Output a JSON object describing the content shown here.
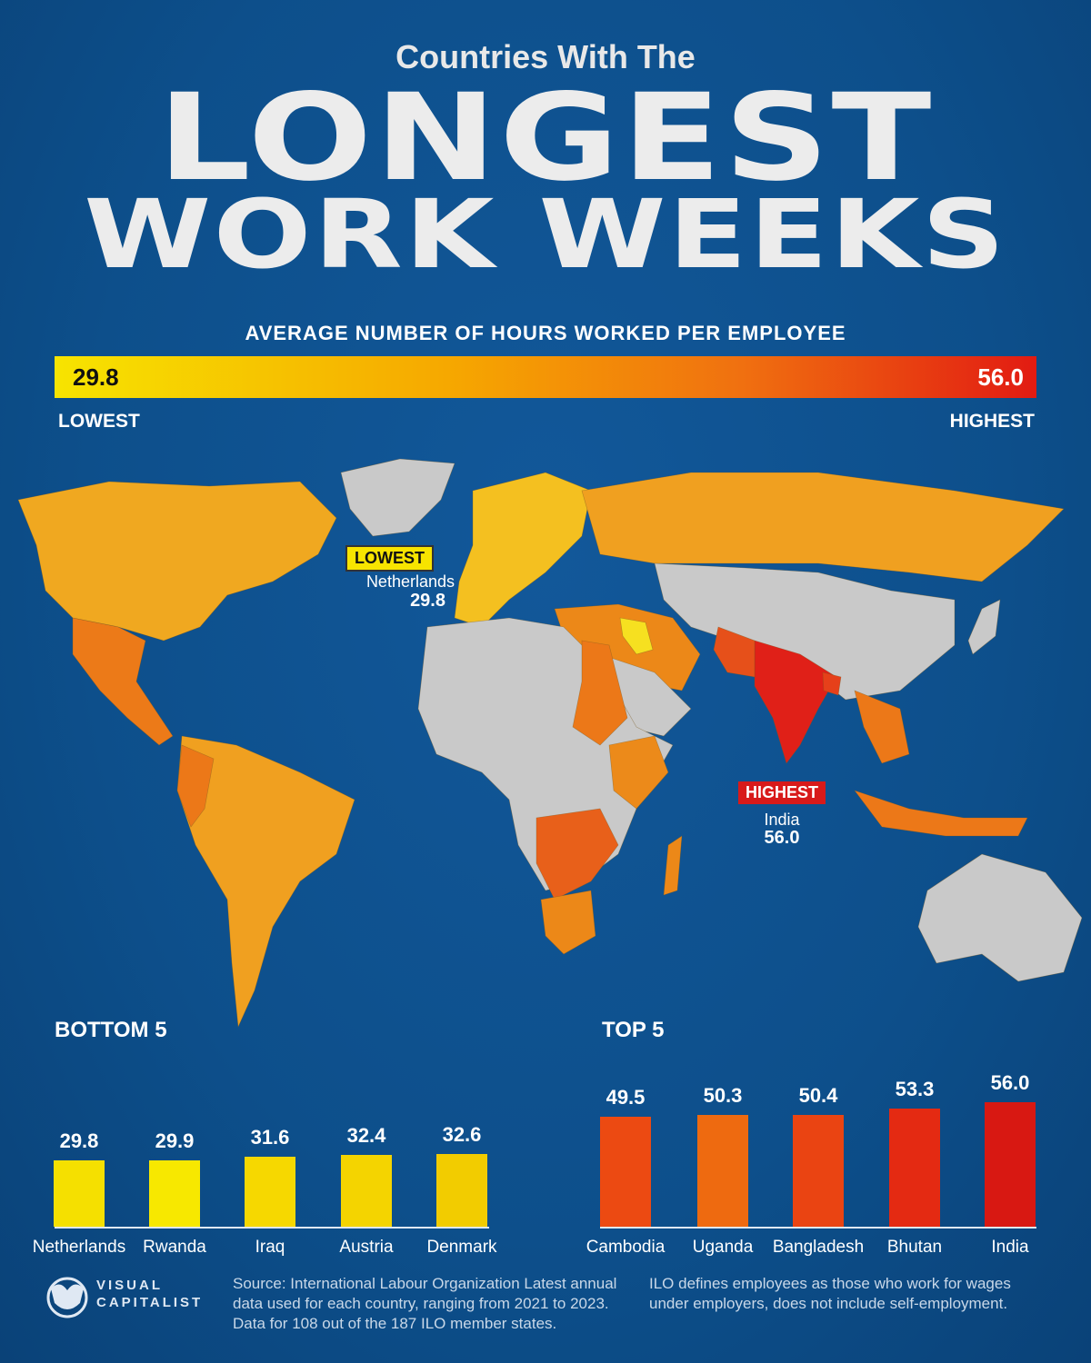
{
  "title": {
    "pre": "Countries With The",
    "line1": "LONGEST",
    "line2": "WORK WEEKS"
  },
  "legend": {
    "subtitle": "AVERAGE NUMBER OF HOURS WORKED PER EMPLOYEE",
    "min": "29.8",
    "max": "56.0",
    "min_label": "LOWEST",
    "max_label": "HIGHEST",
    "colors": {
      "low": "#f7e400",
      "mid": "#f6a800",
      "high": "#e21b12",
      "no_data": "#c9c9c9",
      "ocean": "#0d4f8b"
    }
  },
  "map": {
    "lowest": {
      "badge": "LOWEST",
      "country": "Netherlands",
      "value": "29.8"
    },
    "highest": {
      "badge": "HIGHEST",
      "country": "India",
      "value": "56.0"
    }
  },
  "chart_data": [
    {
      "type": "bar",
      "title": "BOTTOM 5",
      "categories": [
        "Netherlands",
        "Rwanda",
        "Iraq",
        "Austria",
        "Denmark"
      ],
      "values": [
        29.8,
        29.9,
        31.6,
        32.4,
        32.6
      ],
      "labels": [
        "29.8",
        "29.9",
        "31.6",
        "32.4",
        "32.6"
      ],
      "colors": [
        "#f5e000",
        "#f7e800",
        "#f6d800",
        "#f4d400",
        "#f2cc00"
      ]
    },
    {
      "type": "bar",
      "title": "TOP 5",
      "categories": [
        "Cambodia",
        "Uganda",
        "Bangladesh",
        "Bhutan",
        "India"
      ],
      "values": [
        49.5,
        50.3,
        50.4,
        53.3,
        56.0
      ],
      "labels": [
        "49.5",
        "50.3",
        "50.4",
        "53.3",
        "56.0"
      ],
      "colors": [
        "#ec4a12",
        "#ee6a10",
        "#ea4412",
        "#e42a12",
        "#d81812"
      ]
    }
  ],
  "footer": {
    "brand_line1": "VISUAL",
    "brand_line2": "CAPITALIST",
    "source": "Source: International Labour Organization Latest annual data used for each country, ranging from 2021 to 2023. Data for 108 out of the 187 ILO member states.",
    "note": "ILO defines employees as those who work for wages under employers, does not include self-employment."
  }
}
